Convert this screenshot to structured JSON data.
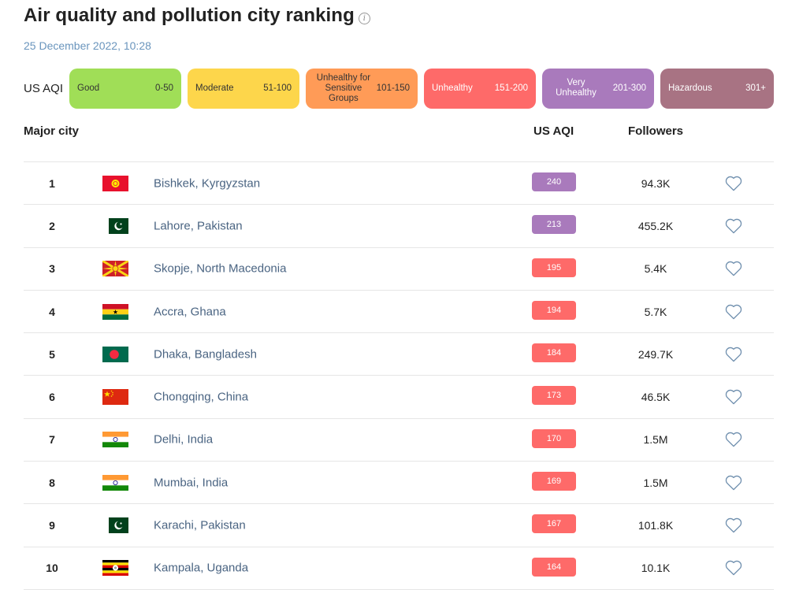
{
  "page": {
    "title": "Air quality and pollution city ranking",
    "info_icon": "info-icon",
    "date": "25 December 2022, 10:28"
  },
  "legend": {
    "label": "US AQI",
    "items": [
      {
        "name": "Good",
        "range": "0-50",
        "color": "#a0de57",
        "text_color": "#333333"
      },
      {
        "name": "Moderate",
        "range": "51-100",
        "color": "#fdd64b",
        "text_color": "#333333"
      },
      {
        "name": "Unhealthy for Sensitive Groups",
        "range": "101-150",
        "color": "#ff9b57",
        "text_color": "#333333"
      },
      {
        "name": "Unhealthy",
        "range": "151-200",
        "color": "#fe6a69",
        "text_color": "#ffffff"
      },
      {
        "name": "Very Unhealthy",
        "range": "201-300",
        "color": "#a97abc",
        "text_color": "#ffffff"
      },
      {
        "name": "Hazardous",
        "range": "301+",
        "color": "#a87383",
        "text_color": "#ffffff"
      }
    ]
  },
  "table": {
    "headers": {
      "city": "Major city",
      "aqi": "US AQI",
      "followers": "Followers"
    },
    "rows": [
      {
        "rank": "1",
        "flag": "kyrgyzstan-flag",
        "city": "Bishkek, Kyrgyzstan",
        "aqi": "240",
        "aqi_color": "#a97abc",
        "followers": "94.3K"
      },
      {
        "rank": "2",
        "flag": "pakistan-flag",
        "city": "Lahore, Pakistan",
        "aqi": "213",
        "aqi_color": "#a97abc",
        "followers": "455.2K"
      },
      {
        "rank": "3",
        "flag": "north-macedonia-flag",
        "city": "Skopje, North Macedonia",
        "aqi": "195",
        "aqi_color": "#fe6a69",
        "followers": "5.4K"
      },
      {
        "rank": "4",
        "flag": "ghana-flag",
        "city": "Accra, Ghana",
        "aqi": "194",
        "aqi_color": "#fe6a69",
        "followers": "5.7K"
      },
      {
        "rank": "5",
        "flag": "bangladesh-flag",
        "city": "Dhaka, Bangladesh",
        "aqi": "184",
        "aqi_color": "#fe6a69",
        "followers": "249.7K"
      },
      {
        "rank": "6",
        "flag": "china-flag",
        "city": "Chongqing, China",
        "aqi": "173",
        "aqi_color": "#fe6a69",
        "followers": "46.5K"
      },
      {
        "rank": "7",
        "flag": "india-flag",
        "city": "Delhi, India",
        "aqi": "170",
        "aqi_color": "#fe6a69",
        "followers": "1.5M"
      },
      {
        "rank": "8",
        "flag": "india-flag",
        "city": "Mumbai, India",
        "aqi": "169",
        "aqi_color": "#fe6a69",
        "followers": "1.5M"
      },
      {
        "rank": "9",
        "flag": "pakistan-flag",
        "city": "Karachi, Pakistan",
        "aqi": "167",
        "aqi_color": "#fe6a69",
        "followers": "101.8K"
      },
      {
        "rank": "10",
        "flag": "uganda-flag",
        "city": "Kampala, Uganda",
        "aqi": "164",
        "aqi_color": "#fe6a69",
        "followers": "10.1K"
      }
    ]
  }
}
